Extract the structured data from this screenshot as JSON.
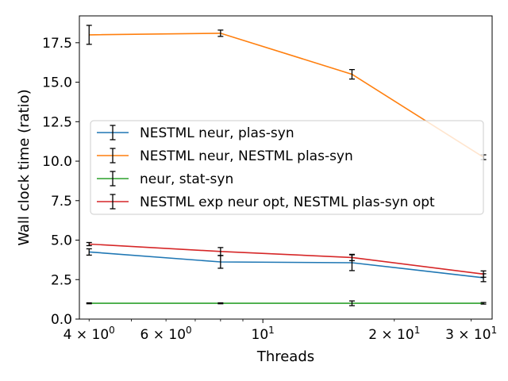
{
  "chart_data": {
    "type": "line",
    "title": "",
    "xlabel": "Threads",
    "ylabel": "Wall clock time (ratio)",
    "xscale": "log",
    "x": [
      4,
      8,
      16,
      32
    ],
    "xlim": [
      3.8,
      33.5
    ],
    "ylim": [
      0,
      19.2
    ],
    "yticks": [
      {
        "value": 0.0,
        "label": "0.0"
      },
      {
        "value": 2.5,
        "label": "2.5"
      },
      {
        "value": 5.0,
        "label": "5.0"
      },
      {
        "value": 7.5,
        "label": "7.5"
      },
      {
        "value": 10.0,
        "label": "10.0"
      },
      {
        "value": 12.5,
        "label": "12.5"
      },
      {
        "value": 15.0,
        "label": "15.0"
      },
      {
        "value": 17.5,
        "label": "17.5"
      }
    ],
    "xticks_major": [
      {
        "value": 10,
        "base": "10",
        "exp": "1",
        "coef": ""
      }
    ],
    "xticks_minor_labeled": [
      {
        "value": 4,
        "coef": "4",
        "base": "10",
        "exp": "0"
      },
      {
        "value": 6,
        "coef": "6",
        "base": "10",
        "exp": "0"
      },
      {
        "value": 20,
        "coef": "2",
        "base": "10",
        "exp": "1"
      },
      {
        "value": 30,
        "coef": "3",
        "base": "10",
        "exp": "1"
      }
    ],
    "xticks_minor_unlabeled": [
      5,
      7,
      8,
      9
    ],
    "legend_position": "center-left",
    "series": [
      {
        "name": "NESTML neur, plas-syn",
        "color": "#1f77b4",
        "values": [
          4.25,
          3.62,
          3.57,
          2.62
        ],
        "errors": [
          0.2,
          0.4,
          0.5,
          0.25
        ]
      },
      {
        "name": "NESTML neur, NESTML plas-syn",
        "color": "#ff7f0e",
        "values": [
          18.0,
          18.1,
          15.5,
          10.25
        ],
        "errors": [
          0.6,
          0.2,
          0.3,
          0.15
        ]
      },
      {
        "name": "neur, stat-syn",
        "color": "#2ca02c",
        "values": [
          1.0,
          1.0,
          1.0,
          1.0
        ],
        "errors": [
          0.03,
          0.03,
          0.15,
          0.05
        ]
      },
      {
        "name": "NESTML exp neur opt, NESTML plas-syn opt",
        "color": "#d62728",
        "values": [
          4.75,
          4.28,
          3.9,
          2.85
        ],
        "errors": [
          0.1,
          0.25,
          0.2,
          0.2
        ]
      }
    ]
  }
}
